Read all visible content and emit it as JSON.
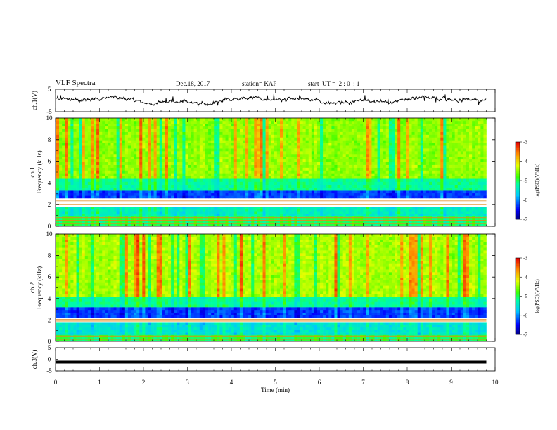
{
  "header": {
    "title": "VLF Spectra",
    "date": "Dec.18, 2017",
    "station": "station= KAP",
    "start": "start  UT =  2 : 0  : 1"
  },
  "chart_data": [
    {
      "type": "line",
      "panel": "ch1-waveform",
      "ylabel": "ch.1(V)",
      "ylim": [
        -5,
        5
      ],
      "yticks": [
        "5",
        "-5"
      ],
      "xlim": [
        0,
        10
      ],
      "series_color": "#000000"
    },
    {
      "type": "heatmap",
      "panel": "ch1-spectrogram",
      "ylabel_line1": "ch.1",
      "ylabel_line2": "Frequency (kHz)",
      "ylim": [
        0,
        10
      ],
      "yticks": [
        "0",
        "2",
        "4",
        "6",
        "8",
        "10"
      ],
      "xlim": [
        0,
        9.8
      ],
      "colorbar": {
        "label": "log(PSD)(V²/Hz)",
        "ticks": [
          "-3",
          "-4",
          "-5",
          "-6",
          "-7"
        ],
        "range": [
          -7,
          -3
        ]
      },
      "bands": [
        {
          "from_khz": 2.6,
          "to_khz": 3.3,
          "level": -6.3,
          "desc": "blue"
        },
        {
          "from_khz": 0.9,
          "to_khz": 1.8,
          "level": -5.4,
          "desc": "cyan"
        },
        {
          "from_khz": 3.3,
          "to_khz": 4.4,
          "level": -5.2,
          "desc": "green"
        },
        {
          "from_khz": 4.4,
          "to_khz": 10,
          "level": -4.5,
          "desc": "yellow"
        }
      ],
      "lines_khz": [
        0.25,
        0.55,
        0.8,
        2.0,
        2.25,
        2.4
      ]
    },
    {
      "type": "heatmap",
      "panel": "ch2-spectrogram",
      "ylabel_line1": "ch.2",
      "ylabel_line2": "Frequency (kHz)",
      "ylim": [
        0,
        10
      ],
      "yticks": [
        "0",
        "2",
        "4",
        "6",
        "8",
        "10"
      ],
      "xlim": [
        0,
        9.8
      ],
      "colorbar": {
        "label": "log(PSD)(V²/Hz)",
        "ticks": [
          "-3",
          "-4",
          "-5",
          "-6",
          "-7"
        ],
        "range": [
          -7,
          -3
        ]
      },
      "bands": [
        {
          "from_khz": 2.2,
          "to_khz": 3.2,
          "level": -6.3,
          "desc": "blue"
        },
        {
          "from_khz": 0.6,
          "to_khz": 1.8,
          "level": -5.5,
          "desc": "cyan"
        },
        {
          "from_khz": 3.2,
          "to_khz": 4.2,
          "level": -5.2,
          "desc": "green"
        },
        {
          "from_khz": 4.2,
          "to_khz": 10,
          "level": -4.4,
          "desc": "yellow"
        }
      ],
      "lines_khz": [
        0.2,
        0.5,
        1.9,
        2.05
      ]
    },
    {
      "type": "line",
      "panel": "ch3-waveform",
      "ylabel": "ch.3(V)",
      "ylim": [
        -5,
        5
      ],
      "yticks": [
        "5",
        "0",
        "-5"
      ],
      "xlim": [
        0,
        10
      ],
      "constant_value": -1.2,
      "xlabel": "Time  (min)",
      "xticks": [
        "0",
        "1",
        "2",
        "3",
        "4",
        "5",
        "6",
        "7",
        "8",
        "9",
        "10"
      ]
    }
  ]
}
